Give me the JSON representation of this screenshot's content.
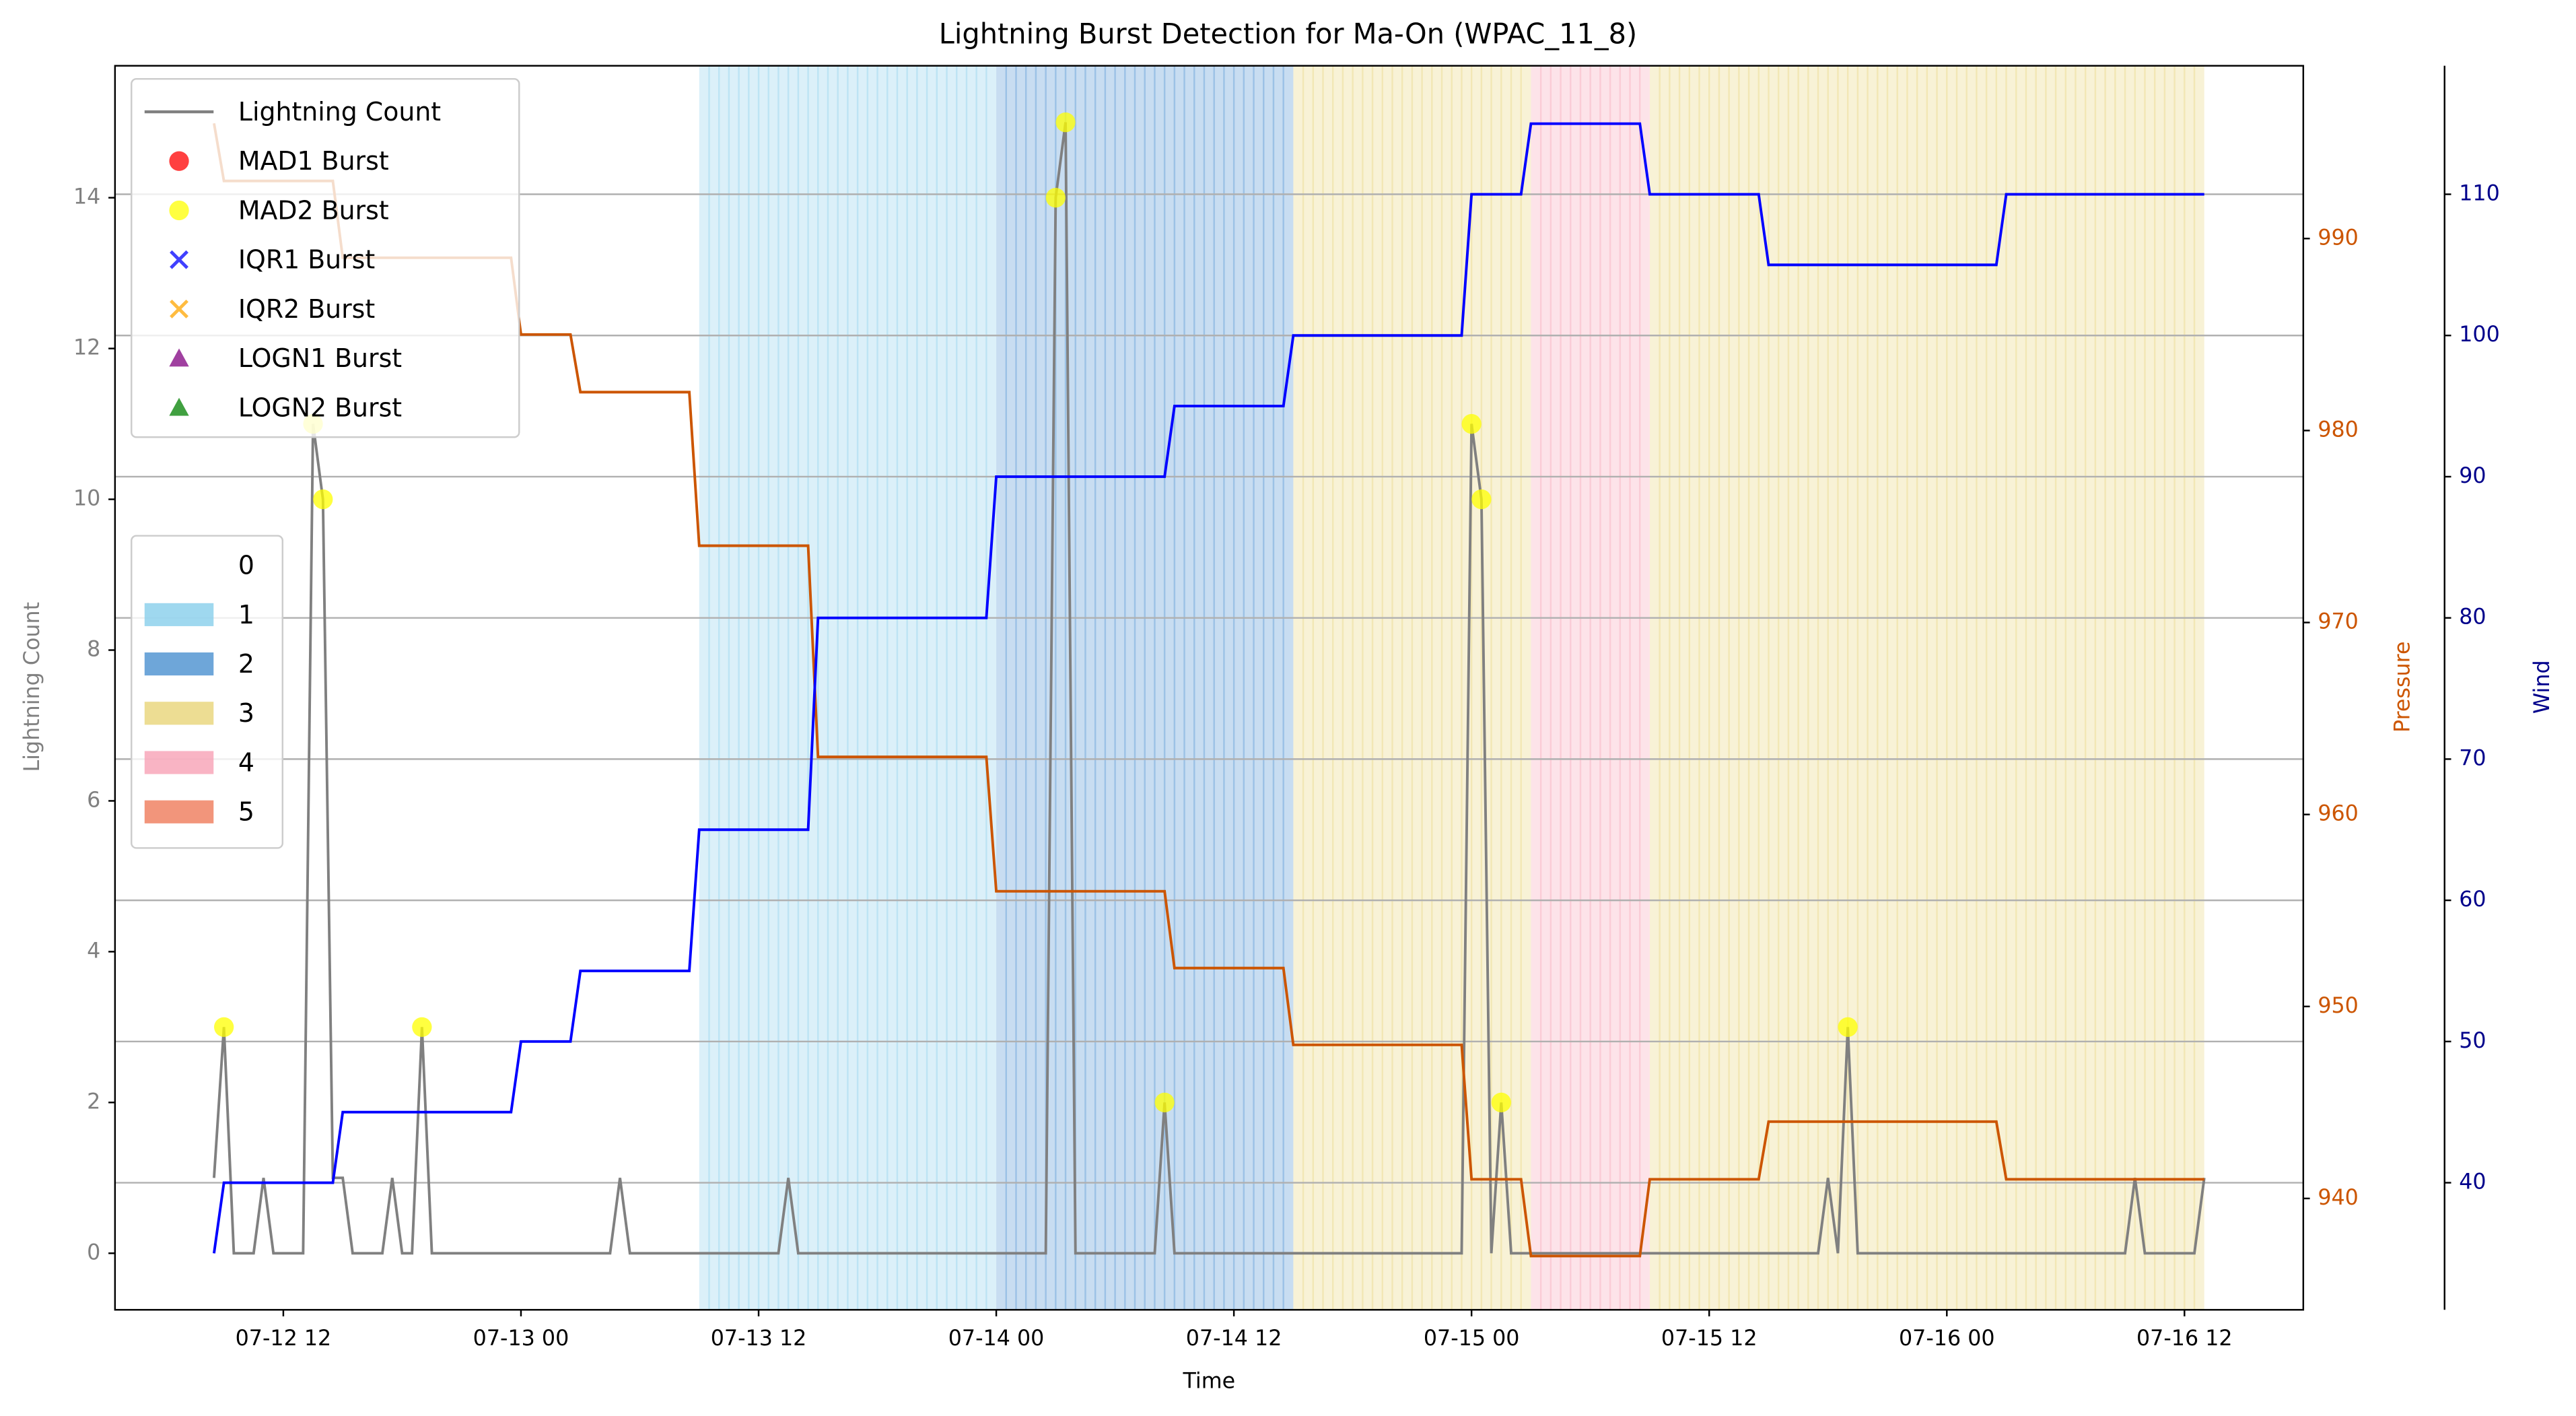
{
  "chart_data": {
    "type": "line",
    "title": "Lightning Burst Detection for Ma-On (WPAC_11_8)",
    "xlabel": "Time",
    "ylabel": "Lightning Count",
    "y2label": "Pressure",
    "y3label": "Wind",
    "xlim": [
      "07-12 03:30",
      "07-16 18:00"
    ],
    "xticks": [
      "07-12 12",
      "07-13 00",
      "07-13 12",
      "07-14 00",
      "07-14 12",
      "07-15 00",
      "07-15 12",
      "07-16 00",
      "07-16 12"
    ],
    "ylim": [
      -0.75,
      15.75
    ],
    "yticks": [
      0,
      2,
      4,
      6,
      8,
      10,
      12,
      14
    ],
    "y_color": "gray",
    "y2lim": [
      934.2,
      999
    ],
    "y2ticks": [
      940,
      950,
      960,
      970,
      980,
      990
    ],
    "y2_color": "#cc5500",
    "y3lim": [
      31,
      119.1
    ],
    "y3ticks": [
      40,
      50,
      60,
      70,
      80,
      90,
      100,
      110
    ],
    "y3_color": "darkblue",
    "grid": "y3",
    "series": [
      {
        "name": "Lightning Count",
        "color": "gray",
        "mark": "line",
        "x": [
          "07-12 08:30",
          "07-12 09:00",
          "07-12 09:30",
          "07-12 10:30",
          "07-12 11:00",
          "07-12 11:30",
          "07-12 13:00",
          "07-12 13:30",
          "07-12 14:00",
          "07-12 14:30",
          "07-12 15:00",
          "07-12 15:30",
          "07-12 17:00",
          "07-12 17:30",
          "07-12 18:00",
          "07-12 18:30",
          "07-12 19:00",
          "07-12 19:30",
          "07-13 04:30",
          "07-13 05:00",
          "07-13 05:30",
          "07-13 13:00",
          "07-13 13:30",
          "07-13 14:00",
          "07-14 02:30",
          "07-14 03:00",
          "07-14 03:30",
          "07-14 04:00",
          "07-14 08:00",
          "07-14 08:30",
          "07-14 09:00",
          "07-14 23:30",
          "07-15 00:00",
          "07-15 00:30",
          "07-15 01:00",
          "07-15 01:30",
          "07-15 02:00",
          "07-15 17:30",
          "07-15 18:00",
          "07-15 18:30",
          "07-15 19:00",
          "07-15 19:30",
          "07-16 09:00",
          "07-16 09:30",
          "07-16 10:00",
          "07-16 12:30",
          "07-16 13:00"
        ],
        "values": [
          1,
          3,
          0,
          0,
          1,
          0,
          0,
          11,
          10,
          1,
          1,
          0,
          0,
          1,
          0,
          0,
          3,
          0,
          0,
          1,
          0,
          0,
          1,
          0,
          0,
          14,
          15,
          0,
          0,
          2,
          0,
          0,
          11,
          10,
          0,
          2,
          0,
          0,
          1,
          0,
          3,
          0,
          0,
          1,
          0,
          0,
          1
        ]
      },
      {
        "color": "#cc5500",
        "mark": "line",
        "axis": "y2",
        "x": [
          "07-12 08:30",
          "07-12 09:00",
          "07-12 14:30",
          "07-12 15:00",
          "07-12 23:30",
          "07-13 00:00",
          "07-13 02:30",
          "07-13 03:00",
          "07-13 08:30",
          "07-13 09:00",
          "07-13 14:30",
          "07-13 15:00",
          "07-13 23:30",
          "07-14 00:00",
          "07-14 08:30",
          "07-14 09:00",
          "07-14 14:30",
          "07-14 15:00",
          "07-14 23:30",
          "07-15 00:00",
          "07-15 02:30",
          "07-15 03:00",
          "07-15 08:30",
          "07-15 09:00",
          "07-15 14:30",
          "07-15 15:00",
          "07-16 02:30",
          "07-16 03:00",
          "07-16 13:00"
        ],
        "values": [
          996,
          993,
          993,
          989,
          989,
          985,
          985,
          982,
          982,
          974,
          974,
          963,
          963,
          956,
          956,
          952,
          952,
          948,
          948,
          941,
          941,
          937,
          937,
          941,
          941,
          944,
          944,
          941,
          941
        ]
      },
      {
        "color": "blue",
        "mark": "line",
        "axis": "y3",
        "x": [
          "07-12 08:30",
          "07-12 09:00",
          "07-12 14:30",
          "07-12 15:00",
          "07-12 23:30",
          "07-13 00:00",
          "07-13 02:30",
          "07-13 03:00",
          "07-13 08:30",
          "07-13 09:00",
          "07-13 14:30",
          "07-13 15:00",
          "07-13 23:30",
          "07-14 00:00",
          "07-14 08:30",
          "07-14 09:00",
          "07-14 14:30",
          "07-14 15:00",
          "07-14 23:30",
          "07-15 00:00",
          "07-15 02:30",
          "07-15 03:00",
          "07-15 08:30",
          "07-15 09:00",
          "07-15 14:30",
          "07-15 15:00",
          "07-16 02:30",
          "07-16 03:00",
          "07-16 13:00"
        ],
        "values": [
          35,
          40,
          40,
          45,
          45,
          50,
          50,
          55,
          55,
          65,
          65,
          80,
          80,
          90,
          90,
          95,
          95,
          100,
          100,
          110,
          110,
          115,
          115,
          110,
          110,
          105,
          105,
          110,
          110
        ]
      },
      {
        "name": "MAD1 Burst",
        "color": "red",
        "mark": "circle",
        "x": [],
        "values": []
      },
      {
        "name": "MAD2 Burst",
        "color": "yellow",
        "mark": "circle",
        "x": [
          "07-12 09:00",
          "07-12 13:30",
          "07-12 14:00",
          "07-12 19:00",
          "07-14 03:00",
          "07-14 03:30",
          "07-14 08:30",
          "07-15 00:00",
          "07-15 00:30",
          "07-15 01:30",
          "07-15 19:00"
        ],
        "values": [
          3,
          11,
          10,
          3,
          14,
          15,
          2,
          11,
          10,
          2,
          3
        ]
      },
      {
        "name": "IQR1 Burst",
        "color": "blue",
        "mark": "x",
        "x": [],
        "values": []
      },
      {
        "name": "IQR2 Burst",
        "color": "orange",
        "mark": "x",
        "x": [],
        "values": []
      },
      {
        "name": "LOGN1 Burst",
        "color": "purple",
        "mark": "triangle",
        "x": [],
        "values": []
      },
      {
        "name": "LOGN2 Burst",
        "color": "green",
        "mark": "triangle",
        "x": [],
        "values": []
      }
    ],
    "spans": {
      "labels": [
        "0",
        "1",
        "2",
        "3",
        "4",
        "5"
      ],
      "colors": [
        "none",
        "#87ceeb",
        "#4a90d0",
        "#e8d478",
        "#f7a1b5",
        "#ef7b5a"
      ],
      "ranges": [
        {
          "level": 1,
          "start": "07-13 09:00",
          "end": "07-14 00:00"
        },
        {
          "level": 2,
          "start": "07-14 00:00",
          "end": "07-14 15:00"
        },
        {
          "level": 3,
          "start": "07-14 15:00",
          "end": "07-15 03:00"
        },
        {
          "level": 4,
          "start": "07-15 03:00",
          "end": "07-15 09:00"
        },
        {
          "level": 3,
          "start": "07-15 09:00",
          "end": "07-16 13:00"
        }
      ]
    }
  }
}
